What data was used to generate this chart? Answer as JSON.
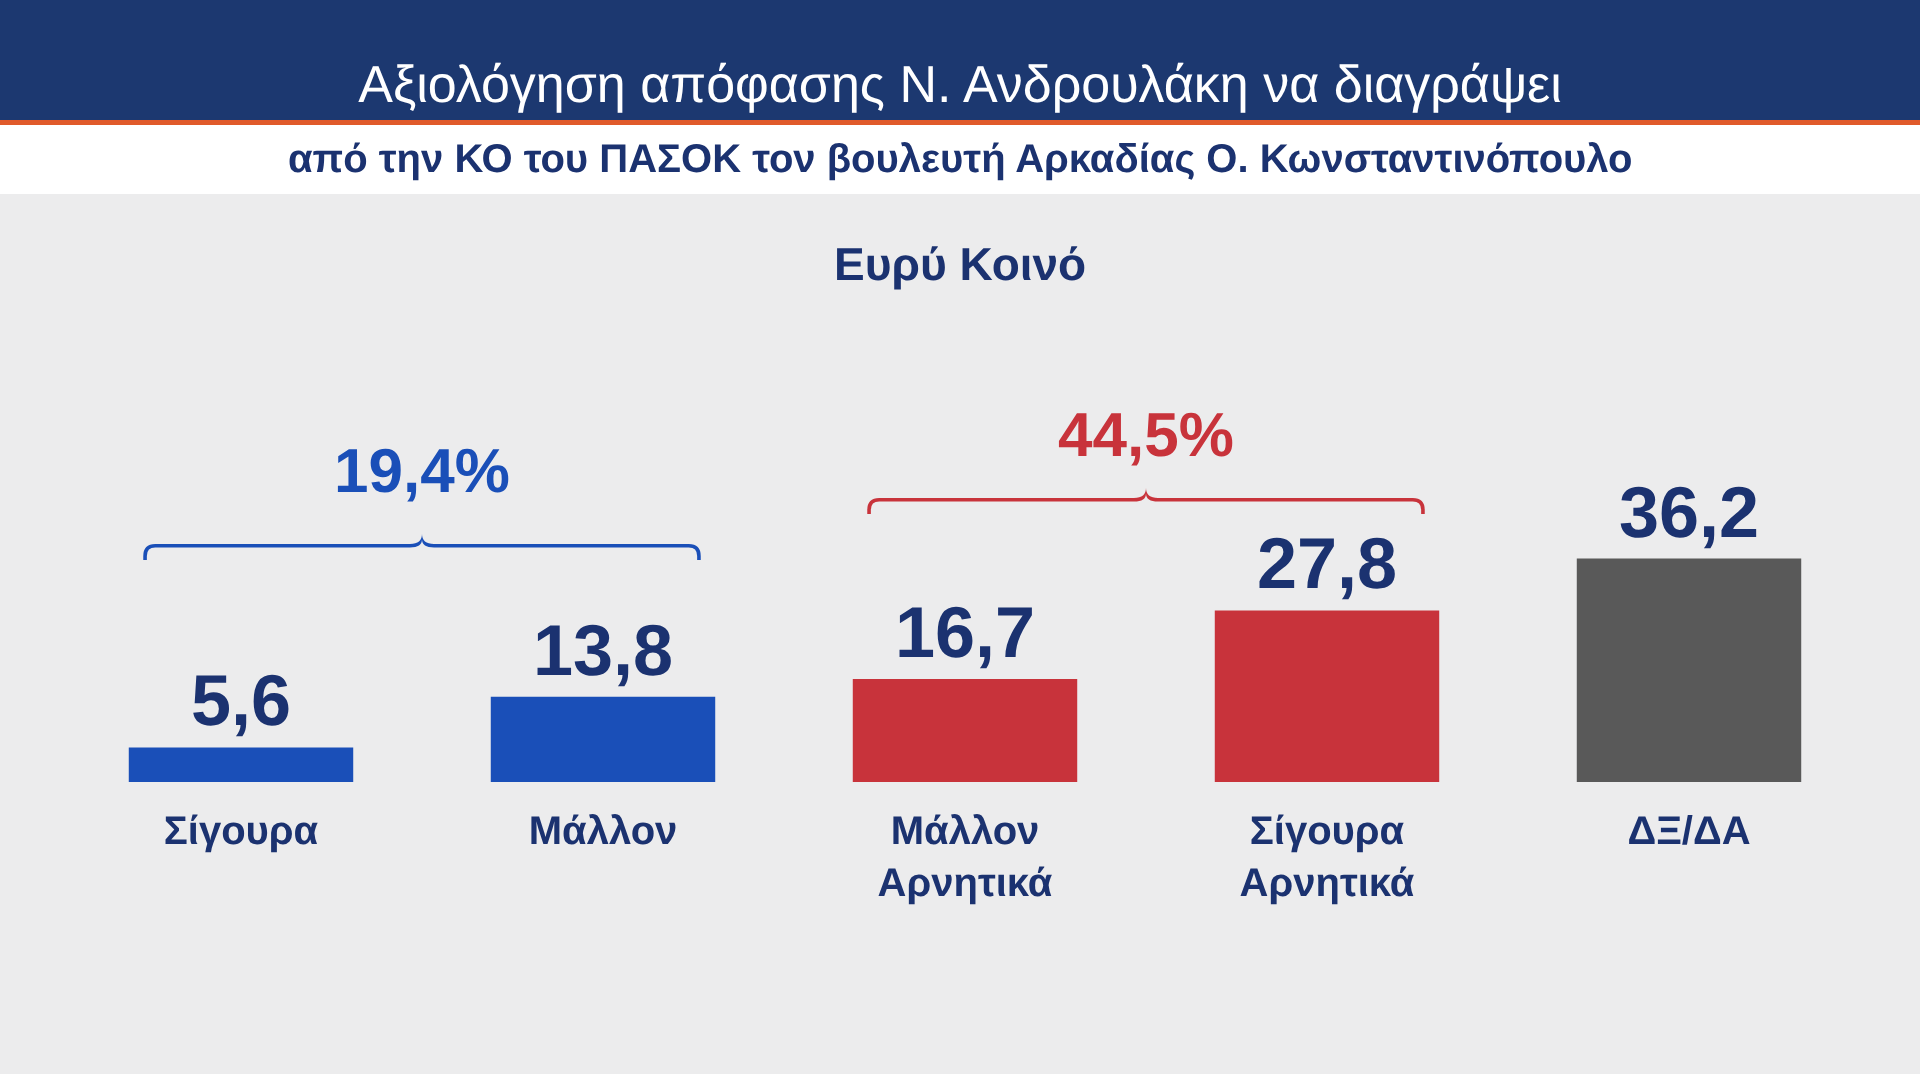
{
  "chart_data": {
    "type": "bar",
    "title": "Αξιολόγηση απόφασης Ν. Ανδρουλάκη να διαγράψει",
    "subtitle": "από την ΚΟ του ΠΑΣΟΚ τον βουλευτή Αρκαδίας Ο. Κωνσταντινόπουλο",
    "annotations": [
      "Ευρύ Κοινό",
      "19,4%",
      "44,5%"
    ],
    "categories": [
      "Σίγουρα",
      "Μάλλον",
      "Μάλλον Αρνητικά",
      "Σίγουρα Αρνητικά",
      "ΔΞ/ΔΑ"
    ],
    "values": [
      5.6,
      13.8,
      16.7,
      27.8,
      36.2
    ],
    "colors": [
      "#1a4fb8",
      "#1a4fb8",
      "#c8333b",
      "#c8333b",
      "#595959"
    ],
    "value_labels": [
      "5,6",
      "13,8",
      "16,7",
      "27,8",
      "36,2"
    ],
    "tick_labels": "x"
  }
}
